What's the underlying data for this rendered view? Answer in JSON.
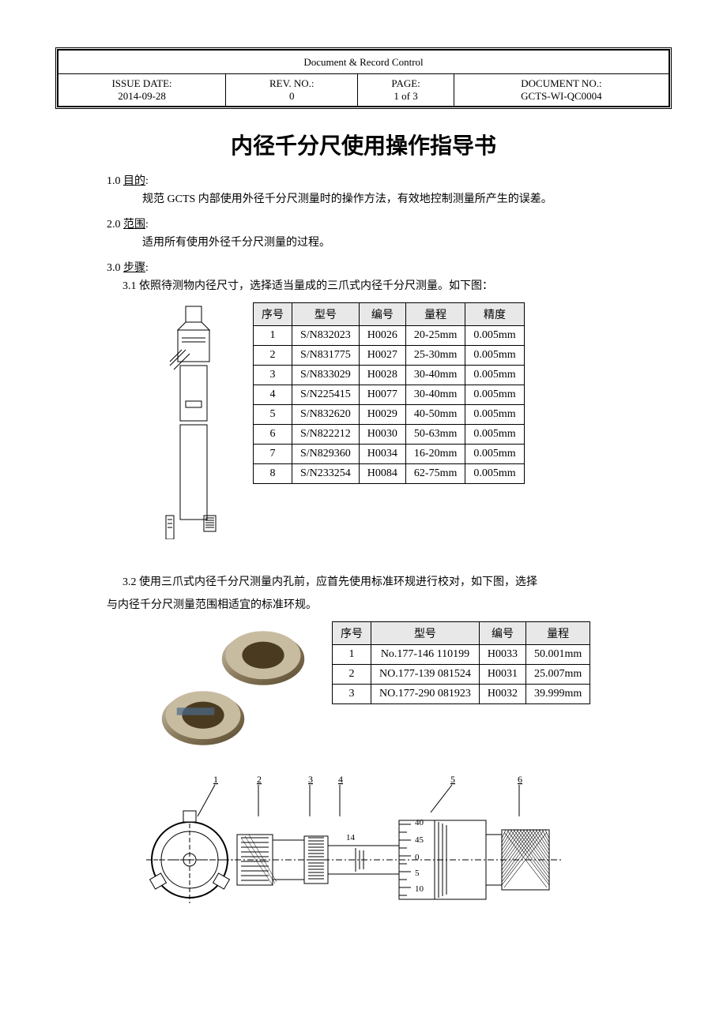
{
  "header": {
    "docControlTitle": "Document & Record Control",
    "issueDateLabel": "ISSUE DATE:",
    "issueDateValue": "2014-09-28",
    "revNoLabel": "REV. NO.:",
    "revNoValue": "0",
    "pageLabel": "PAGE:",
    "pageValue": "1 of 3",
    "docNoLabel": "DOCUMENT NO.:",
    "docNoValue": "GCTS-WI-QC0004"
  },
  "title": "内径千分尺使用操作指导书",
  "sections": {
    "s1": {
      "heading": "1.0 目的:",
      "body": "规范 GCTS 内部使用外径千分尺测量时的操作方法，有效地控制测量所产生的误差。"
    },
    "s2": {
      "heading": "2.0 范围:",
      "body": "适用所有使用外径千分尺测量的过程。"
    },
    "s3": {
      "heading": "3.0 步骤:"
    },
    "s31": "3.1 依照待测物内径尺寸，选择适当量成的三爪式内径千分尺测量。如下图：",
    "s32a": "3.2 使用三爪式内径千分尺测量内孔前，应首先使用标准环规进行校对，如下图，选择",
    "s32b": "与内径千分尺测量范围相适宜的标准环规。"
  },
  "table1": {
    "headers": [
      "序号",
      "型号",
      "编号",
      "量程",
      "精度"
    ],
    "rows": [
      [
        "1",
        "S/N832023",
        "H0026",
        "20-25mm",
        "0.005mm"
      ],
      [
        "2",
        "S/N831775",
        "H0027",
        "25-30mm",
        "0.005mm"
      ],
      [
        "3",
        "S/N833029",
        "H0028",
        "30-40mm",
        "0.005mm"
      ],
      [
        "4",
        "S/N225415",
        "H0077",
        "30-40mm",
        "0.005mm"
      ],
      [
        "5",
        "S/N832620",
        "H0029",
        "40-50mm",
        "0.005mm"
      ],
      [
        "6",
        "S/N822212",
        "H0030",
        "50-63mm",
        "0.005mm"
      ],
      [
        "7",
        "S/N829360",
        "H0034",
        "16-20mm",
        "0.005mm"
      ],
      [
        "8",
        "S/N233254",
        "H0084",
        "62-75mm",
        "0.005mm"
      ]
    ]
  },
  "table2": {
    "headers": [
      "序号",
      "型号",
      "编号",
      "量程"
    ],
    "rows": [
      [
        "1",
        "No.177-146 110199",
        "H0033",
        "50.001mm"
      ],
      [
        "2",
        "NO.177-139 081524",
        "H0031",
        "25.007mm"
      ],
      [
        "3",
        "NO.177-290 081923",
        "H0032",
        "39.999mm"
      ]
    ]
  },
  "diagram": {
    "labels": [
      "1",
      "2",
      "3",
      "4",
      "5",
      "6"
    ],
    "scaleNumbers": [
      "40",
      "45",
      "0",
      "5",
      "10"
    ],
    "scaleMark": "14"
  },
  "colors": {
    "background": "#ffffff",
    "text": "#000000",
    "tableHeaderBg": "#e8e8e8",
    "border": "#000000"
  }
}
